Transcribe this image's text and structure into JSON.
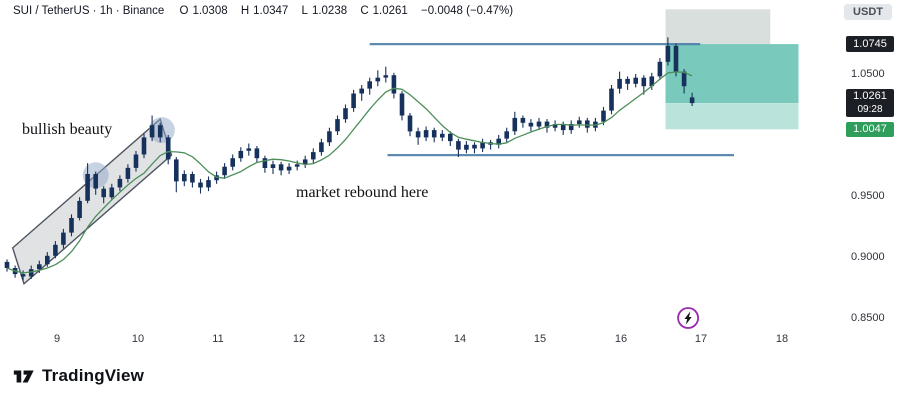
{
  "header": {
    "symbol": "SUI / TetherUS · 1h · Binance",
    "o_label": "O",
    "o_value": "1.0308",
    "h_label": "H",
    "h_value": "1.0347",
    "l_label": "L",
    "l_value": "1.0238",
    "c_label": "C",
    "c_value": "1.0261",
    "change": "−0.0048 (−0.47%)",
    "quote_badge": "USDT"
  },
  "annotations": {
    "bullish": "bullish beauty",
    "rebound": "market rebound here"
  },
  "footer": {
    "brand": "TradingView"
  },
  "chart_data": {
    "type": "candlestick",
    "symbol": "SUI / TetherUS",
    "exchange": "Binance",
    "timeframe": "1h",
    "title": "SUI / TetherUS · 1h · Binance",
    "x_ticks": [
      "9",
      "10",
      "11",
      "12",
      "13",
      "14",
      "15",
      "16",
      "17",
      "18"
    ],
    "y_ticks": [
      "1.0500",
      "0.9500",
      "0.9000",
      "0.8500"
    ],
    "ylim": [
      0.845,
      1.105
    ],
    "xlim_days": [
      8.3,
      18.5
    ],
    "price_labels": {
      "high": "1.0745",
      "current": "1.0261",
      "countdown": "09:28",
      "target": "1.0047"
    },
    "ohlc_current": {
      "open": 1.0308,
      "high": 1.0347,
      "low": 1.0238,
      "close": 1.0261,
      "change": -0.0048,
      "change_pct": -0.47
    },
    "candle_color": "#16325c",
    "level_color": "#4d7ea8",
    "candles": {
      "t0": 8.38,
      "dt": 0.1,
      "columns": [
        "open",
        "high",
        "low",
        "close"
      ],
      "ohlc": [
        [
          0.896,
          0.898,
          0.888,
          0.891
        ],
        [
          0.891,
          0.893,
          0.883,
          0.886
        ],
        [
          0.886,
          0.889,
          0.881,
          0.884
        ],
        [
          0.884,
          0.893,
          0.882,
          0.89
        ],
        [
          0.89,
          0.897,
          0.887,
          0.894
        ],
        [
          0.894,
          0.904,
          0.892,
          0.901
        ],
        [
          0.901,
          0.913,
          0.899,
          0.91
        ],
        [
          0.91,
          0.923,
          0.907,
          0.92
        ],
        [
          0.92,
          0.935,
          0.917,
          0.932
        ],
        [
          0.932,
          0.949,
          0.93,
          0.946
        ],
        [
          0.946,
          0.977,
          0.944,
          0.968
        ],
        [
          0.968,
          0.97,
          0.951,
          0.956
        ],
        [
          0.956,
          0.958,
          0.944,
          0.949
        ],
        [
          0.949,
          0.96,
          0.947,
          0.957
        ],
        [
          0.957,
          0.967,
          0.954,
          0.964
        ],
        [
          0.964,
          0.976,
          0.961,
          0.973
        ],
        [
          0.973,
          0.987,
          0.97,
          0.984
        ],
        [
          0.984,
          1.001,
          0.981,
          0.998
        ],
        [
          0.998,
          1.016,
          0.995,
          1.008
        ],
        [
          1.008,
          1.01,
          0.994,
          0.998
        ],
        [
          0.998,
          1.0,
          0.976,
          0.98
        ],
        [
          0.98,
          0.982,
          0.953,
          0.962
        ],
        [
          0.962,
          0.971,
          0.958,
          0.968
        ],
        [
          0.968,
          0.97,
          0.957,
          0.961
        ],
        [
          0.961,
          0.964,
          0.952,
          0.957
        ],
        [
          0.957,
          0.966,
          0.954,
          0.963
        ],
        [
          0.963,
          0.97,
          0.96,
          0.967
        ],
        [
          0.967,
          0.977,
          0.964,
          0.974
        ],
        [
          0.974,
          0.984,
          0.971,
          0.981
        ],
        [
          0.981,
          0.99,
          0.978,
          0.987
        ],
        [
          0.987,
          0.993,
          0.983,
          0.989
        ],
        [
          0.989,
          0.991,
          0.977,
          0.981
        ],
        [
          0.981,
          0.983,
          0.969,
          0.973
        ],
        [
          0.973,
          0.979,
          0.968,
          0.976
        ],
        [
          0.976,
          0.978,
          0.967,
          0.971
        ],
        [
          0.971,
          0.977,
          0.968,
          0.974
        ],
        [
          0.974,
          0.979,
          0.971,
          0.976
        ],
        [
          0.976,
          0.983,
          0.973,
          0.98
        ],
        [
          0.98,
          0.989,
          0.977,
          0.986
        ],
        [
          0.986,
          0.997,
          0.983,
          0.994
        ],
        [
          0.994,
          1.006,
          0.991,
          1.003
        ],
        [
          1.003,
          1.016,
          1.0,
          1.013
        ],
        [
          1.013,
          1.025,
          1.01,
          1.022
        ],
        [
          1.022,
          1.037,
          1.019,
          1.034
        ],
        [
          1.034,
          1.041,
          1.028,
          1.038
        ],
        [
          1.038,
          1.047,
          1.033,
          1.044
        ],
        [
          1.044,
          1.053,
          1.04,
          1.047
        ],
        [
          1.047,
          1.056,
          1.043,
          1.049
        ],
        [
          1.049,
          1.051,
          1.03,
          1.034
        ],
        [
          1.034,
          1.036,
          1.012,
          1.016
        ],
        [
          1.016,
          1.018,
          0.999,
          1.003
        ],
        [
          1.003,
          1.006,
          0.992,
          0.998
        ],
        [
          0.998,
          1.007,
          0.995,
          1.004
        ],
        [
          1.004,
          1.006,
          0.994,
          0.998
        ],
        [
          0.998,
          1.004,
          0.995,
          1.001
        ],
        [
          1.001,
          1.003,
          0.991,
          0.995
        ],
        [
          0.995,
          0.997,
          0.982,
          0.988
        ],
        [
          0.988,
          0.995,
          0.985,
          0.992
        ],
        [
          0.992,
          0.994,
          0.985,
          0.989
        ],
        [
          0.989,
          0.997,
          0.986,
          0.994
        ],
        [
          0.994,
          0.996,
          0.988,
          0.992
        ],
        [
          0.992,
          1.0,
          0.989,
          0.997
        ],
        [
          0.997,
          1.006,
          0.994,
          1.003
        ],
        [
          1.003,
          1.019,
          1.0,
          1.014
        ],
        [
          1.014,
          1.016,
          1.006,
          1.01
        ],
        [
          1.01,
          1.013,
          1.003,
          1.007
        ],
        [
          1.007,
          1.014,
          1.004,
          1.011
        ],
        [
          1.011,
          1.013,
          1.002,
          1.006
        ],
        [
          1.006,
          1.012,
          1.003,
          1.009
        ],
        [
          1.009,
          1.011,
          1.0,
          1.004
        ],
        [
          1.004,
          1.012,
          1.001,
          1.009
        ],
        [
          1.009,
          1.015,
          1.006,
          1.012
        ],
        [
          1.012,
          1.014,
          1.002,
          1.006
        ],
        [
          1.006,
          1.014,
          1.003,
          1.011
        ],
        [
          1.011,
          1.023,
          1.008,
          1.02
        ],
        [
          1.02,
          1.041,
          1.017,
          1.038
        ],
        [
          1.038,
          1.052,
          1.034,
          1.046
        ],
        [
          1.046,
          1.048,
          1.037,
          1.042
        ],
        [
          1.042,
          1.05,
          1.039,
          1.047
        ],
        [
          1.047,
          1.049,
          1.033,
          1.04
        ],
        [
          1.04,
          1.051,
          1.037,
          1.048
        ],
        [
          1.048,
          1.063,
          1.045,
          1.06
        ],
        [
          1.06,
          1.08,
          1.057,
          1.073
        ],
        [
          1.073,
          1.075,
          1.048,
          1.052
        ],
        [
          1.052,
          1.054,
          1.034,
          1.04
        ],
        [
          1.0308,
          1.0347,
          1.0238,
          1.0261
        ]
      ]
    },
    "ma": {
      "type": "sma",
      "period": 7,
      "color": "#4d8f5b"
    },
    "levels": [
      {
        "name": "resistance-line",
        "price": 1.0745,
        "d1": 12.88,
        "d2": 16.98
      },
      {
        "name": "support-line",
        "price": 0.9835,
        "d1": 13.1,
        "d2": 17.4
      }
    ],
    "zones": [
      {
        "name": "upper-gray-zone",
        "d1": 16.55,
        "d2": 17.85,
        "p_top": 1.103,
        "p_bottom": 1.0745,
        "fill": "#9fb0a8",
        "opacity": 0.4
      },
      {
        "name": "profit-zone",
        "d1": 16.55,
        "d2": 18.2,
        "p_top": 1.0745,
        "p_bottom": 1.0261,
        "fill": "#57bcab",
        "opacity": 0.8
      },
      {
        "name": "profit-zone-extension",
        "d1": 16.55,
        "d2": 18.2,
        "p_top": 1.0261,
        "p_bottom": 1.0047,
        "fill": "#a9ddd2",
        "opacity": 0.8
      }
    ],
    "channel": {
      "name": "bullish-channel",
      "points": [
        [
          8.45,
          0.9075
        ],
        [
          10.28,
          1.013
        ],
        [
          10.42,
          0.9835
        ],
        [
          8.59,
          0.878
        ]
      ],
      "fill": "#787b86",
      "fill_opacity": 0.22,
      "stroke": "#4f5561"
    },
    "circles": [
      {
        "day": 9.48,
        "price": 0.967,
        "r": 13
      },
      {
        "day": 10.3,
        "price": 1.004,
        "r": 13
      }
    ],
    "circle_style": {
      "fill": "#8fa6c8",
      "opacity": 0.5
    },
    "marker": {
      "name": "lightning-event-marker",
      "day": 16.83,
      "price": 0.85,
      "ring": "#9c27b0"
    }
  }
}
